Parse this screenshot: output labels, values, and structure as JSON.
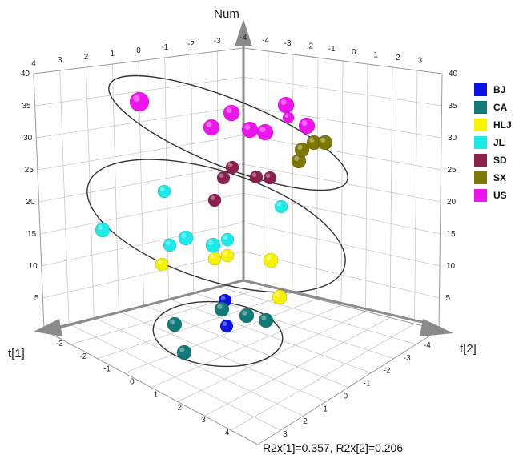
{
  "chart_data": {
    "type": "scatter",
    "subtype": "3d-scatter",
    "axes": {
      "vertical": {
        "label": "Num",
        "ticks": [
          "5",
          "10",
          "15",
          "20",
          "25",
          "30",
          "35",
          "40"
        ]
      },
      "left": {
        "label": "t[1]",
        "ticks": [
          "-3",
          "-2",
          "-1",
          "0",
          "1",
          "2",
          "3",
          "4"
        ]
      },
      "right": {
        "label": "t[2]",
        "ticks": [
          "-4",
          "-3",
          "-2",
          "-1",
          "0",
          "1",
          "2",
          "3"
        ]
      },
      "back_left_top_ticks": [
        "4",
        "3",
        "2",
        "1",
        "0",
        "-1",
        "-2",
        "-3",
        "-4"
      ],
      "back_right_top_ticks": [
        "-4",
        "-3",
        "-2",
        "-1",
        "0",
        "1",
        "2",
        "3"
      ]
    },
    "grid": true,
    "legend_position": "right",
    "footer": "R2x[1]=0.357, R2x[2]=0.206",
    "groups": [
      {
        "name": "BJ",
        "color": "#0a12e6"
      },
      {
        "name": "CA",
        "color": "#117a78"
      },
      {
        "name": "HLJ",
        "color": "#f6f200"
      },
      {
        "name": "JL",
        "color": "#19ebea"
      },
      {
        "name": "SD",
        "color": "#8b1f4d"
      },
      {
        "name": "SX",
        "color": "#7d7800"
      },
      {
        "name": "US",
        "color": "#ee14ee"
      }
    ]
  }
}
